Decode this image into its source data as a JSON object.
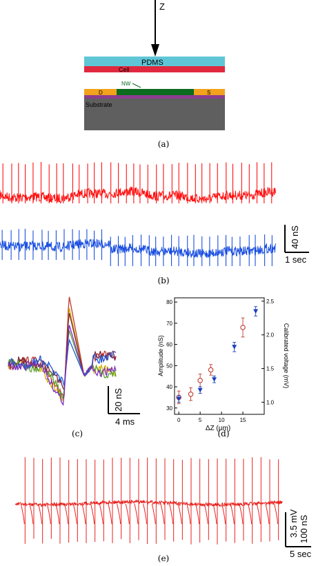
{
  "panel_a": {
    "axis_label": "Z",
    "layers": {
      "pdms": "PDMS",
      "cell": "Cell",
      "nw": "NW",
      "d": "D",
      "s": "S",
      "substrate": "Substrate"
    },
    "colors": {
      "pdms": "#5fc6d6",
      "cell": "#e0293f",
      "contact": "#f2a21c",
      "nanowire": "#0b6b1e",
      "interlayer": "#8a3d8f",
      "substrate": "#5f5f5f"
    },
    "caption": "(a)"
  },
  "panel_b": {
    "scale_y": "40 nS",
    "scale_x": "1 sec",
    "traces": [
      {
        "color": "#ff1010",
        "spike_count": 36,
        "spike_height_nS": 40
      },
      {
        "color": "#1a4fe0",
        "spike_count": 36,
        "spike_height_nS": 22
      }
    ],
    "caption": "(b)"
  },
  "panel_c": {
    "scale_y": "20 nS",
    "scale_x": "4 ms",
    "waveform_colors": [
      "#c0392b",
      "#d4b000",
      "#7a1f3a",
      "#5aa02c",
      "#1f56d6",
      "#7b2cbf"
    ],
    "caption": "(c)"
  },
  "panel_d": {
    "xlabel": "ΔZ (µm)",
    "ylabel_left": "Amplitude (nS)",
    "ylabel_right": "Calibrated voltage (mV)",
    "caption": "(d)"
  },
  "panel_e": {
    "scale_y_top": "3.5 mV",
    "scale_y_bottom": "100 nS",
    "scale_x": "5 sec",
    "color": "#e8201c",
    "spike_count": 30,
    "caption": "(e)"
  },
  "chart_data": [
    {
      "type": "scatter",
      "panel": "d",
      "xlabel": "ΔZ (µm)",
      "ylabel": "Amplitude (nS)",
      "y2label": "Calibrated voltage (mV)",
      "xlim": [
        -1,
        20
      ],
      "ylim": [
        27,
        82
      ],
      "y2lim": [
        0.82,
        2.55
      ],
      "xticks": [
        0,
        5,
        10,
        15
      ],
      "yticks": [
        30,
        40,
        50,
        60,
        70,
        80
      ],
      "y2ticks": [
        1.0,
        1.5,
        2.0,
        2.5
      ],
      "series": [
        {
          "marker": "open-circle",
          "color": "#c0392b",
          "axis": "left",
          "x": [
            0,
            2.8,
            5,
            7.5,
            15
          ],
          "y": [
            35,
            36.5,
            43,
            48,
            68
          ],
          "err": [
            3,
            3,
            3,
            2.5,
            4.5
          ]
        },
        {
          "marker": "filled-triangle-down",
          "color": "#1a3fc0",
          "axis": "right",
          "x": [
            0,
            5,
            8.3,
            13,
            18
          ],
          "y": [
            1.05,
            1.18,
            1.34,
            1.82,
            2.35
          ],
          "err": [
            0.05,
            0.05,
            0.05,
            0.07,
            0.07
          ]
        }
      ],
      "grid": false
    }
  ]
}
